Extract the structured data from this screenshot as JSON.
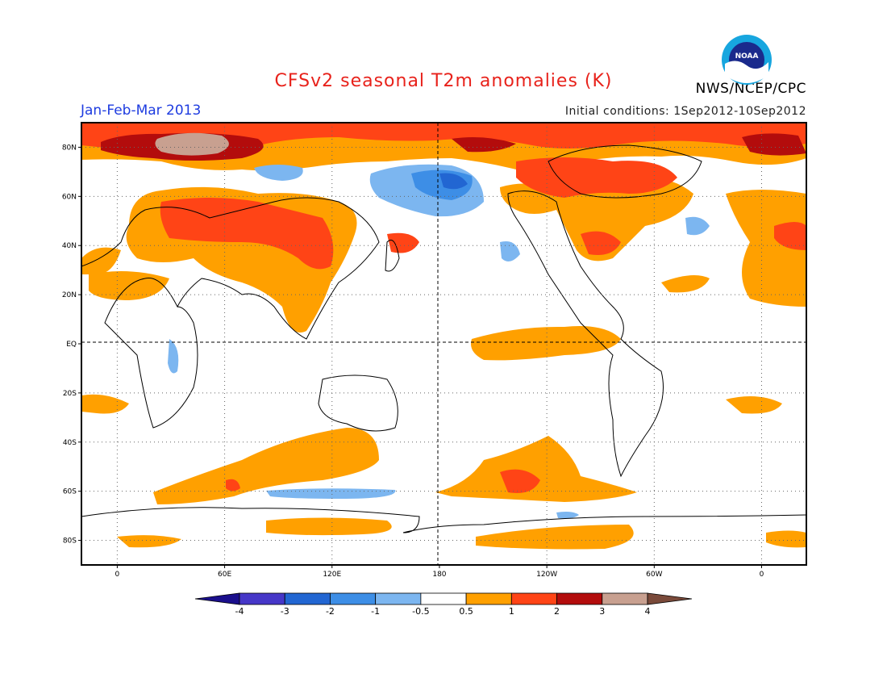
{
  "header": {
    "title": "CFSv2 seasonal T2m anomalies (K)",
    "org": "NWS/NCEP/CPC",
    "season": "Jan-Feb-Mar 2013",
    "initial_conditions": "Initial conditions: 1Sep2012-10Sep2012",
    "logo_text": "NOAA"
  },
  "map": {
    "lat_labels": [
      "80N",
      "60N",
      "40N",
      "20N",
      "EQ",
      "20S",
      "40S",
      "60S",
      "80S"
    ],
    "lat_values": [
      80,
      60,
      40,
      20,
      0,
      -20,
      -40,
      -60,
      -80
    ],
    "lon_labels": [
      "0",
      "60E",
      "120E",
      "180",
      "120W",
      "60W",
      "0"
    ],
    "lon_values": [
      0,
      60,
      120,
      180,
      240,
      300,
      360
    ],
    "lon_range": [
      -20,
      385
    ],
    "lat_range": [
      -90,
      90
    ]
  },
  "colorbar": {
    "labels": [
      "-4",
      "-3",
      "-2",
      "-1",
      "-0.5",
      "0.5",
      "1",
      "2",
      "3",
      "4"
    ],
    "colors": [
      "#1a0f8c",
      "#4637c8",
      "#2266d2",
      "#3d8ee6",
      "#7cb6f0",
      "#ffffff",
      "#ffa000",
      "#ff4416",
      "#b30c0c",
      "#c8a090",
      "#7a4a3a"
    ]
  }
}
